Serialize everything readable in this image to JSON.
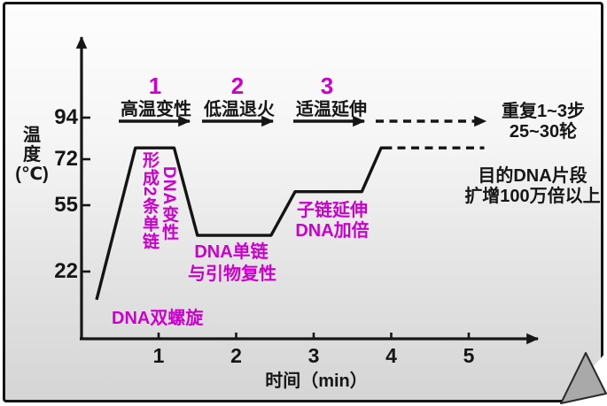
{
  "chart_data": {
    "type": "line",
    "title": "",
    "xlabel": "时间（min）",
    "ylabel_lines": [
      "温",
      "度",
      "(℃)"
    ],
    "x_ticks": [
      "1",
      "2",
      "3",
      "4",
      "5"
    ],
    "x_tick_values": [
      1,
      2,
      3,
      4,
      5
    ],
    "y_ticks": [
      "94",
      "72",
      "55",
      "22"
    ],
    "y_tick_values": [
      94,
      72,
      55,
      22
    ],
    "xlim": [
      0,
      5.7
    ],
    "ylim": [
      0,
      110
    ],
    "grid": false,
    "legend": "none",
    "series": [
      {
        "name": "temperature-profile",
        "style": "solid",
        "points": [
          [
            0.2,
            8
          ],
          [
            0.7,
            78
          ],
          [
            1.2,
            78
          ],
          [
            1.5,
            40
          ],
          [
            2.45,
            40
          ],
          [
            2.76,
            60
          ],
          [
            3.62,
            60
          ],
          [
            3.87,
            78
          ],
          [
            4.01,
            78
          ]
        ]
      },
      {
        "name": "repeat-cycle-continuation",
        "style": "dashed",
        "points": [
          [
            4.08,
            78
          ],
          [
            5.2,
            78
          ]
        ]
      }
    ]
  },
  "steps": [
    {
      "number": "1",
      "label": "高温变性"
    },
    {
      "number": "2",
      "label": "低温退火"
    },
    {
      "number": "3",
      "label": "适温延伸"
    }
  ],
  "notes": {
    "repeat_line1": "重复1~3步",
    "repeat_line2": "25~30轮",
    "result_line1": "目的DNA片段",
    "result_line2": "扩增100万倍以上"
  },
  "curve_labels": {
    "start": "DNA双螺旋",
    "peak_vertical_left": "形成2条单链",
    "peak_vertical_right": "DNA变性",
    "anneal_line1": "DNA单链",
    "anneal_line2": "与引物复性",
    "extend_line1": "子链延伸",
    "extend_line2": "DNA加倍"
  },
  "colors": {
    "accent_magenta": "#cc00cc",
    "ink": "#161616",
    "page_top": "#fdfdfd",
    "page_bottom": "#d5d5d5",
    "curl_fill": "#a9a9a9"
  }
}
